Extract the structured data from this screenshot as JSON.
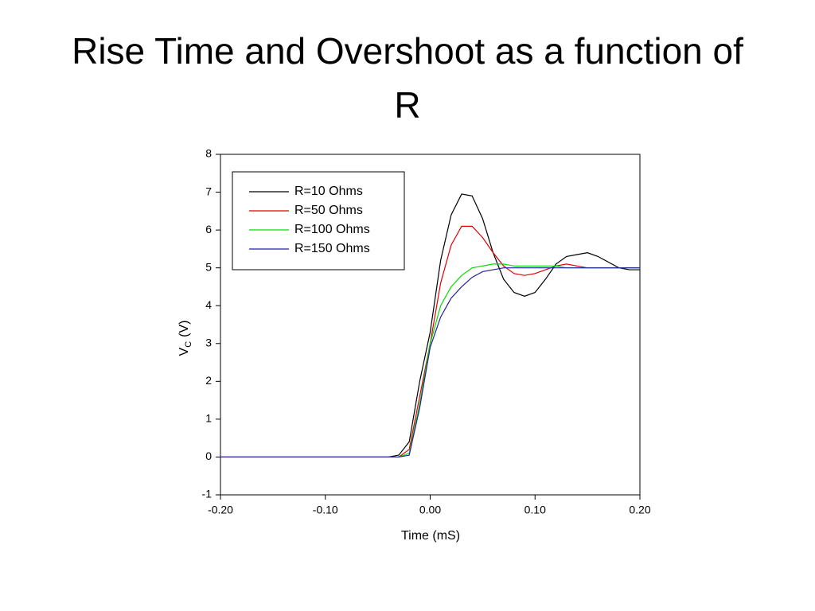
{
  "chart_data": {
    "type": "line",
    "title": "Rise Time and Overshoot as a function of R",
    "xlabel": "Time (mS)",
    "ylabel": "V",
    "ylabel_subscript": "C",
    "ylabel_unit": "(V)",
    "xlim": [
      -0.2,
      0.2
    ],
    "ylim": [
      -1,
      8
    ],
    "xticks": [
      {
        "value": -0.2,
        "label": "-0.20"
      },
      {
        "value": -0.1,
        "label": "-0.10"
      },
      {
        "value": 0,
        "label": "0.00"
      },
      {
        "value": 0.1,
        "label": "0.10"
      },
      {
        "value": 0.2,
        "label": "0.20"
      }
    ],
    "yticks": [
      -1,
      0,
      1,
      2,
      3,
      4,
      5,
      6,
      7,
      8
    ],
    "legend": "upper left",
    "x": [
      -0.2,
      -0.19,
      -0.18,
      -0.17,
      -0.16,
      -0.15,
      -0.14,
      -0.13,
      -0.12,
      -0.11,
      -0.1,
      -0.09,
      -0.08,
      -0.07,
      -0.06,
      -0.05,
      -0.04,
      -0.03,
      -0.02,
      -0.01,
      0,
      0.01,
      0.02,
      0.03,
      0.04,
      0.05,
      0.06,
      0.07,
      0.08,
      0.09,
      0.1,
      0.11,
      0.12,
      0.13,
      0.14,
      0.15,
      0.16,
      0.17,
      0.18,
      0.19,
      0.2
    ],
    "series": [
      {
        "name": "R=10 Ohms",
        "color": "#000000",
        "values": [
          0,
          0,
          0,
          0,
          0,
          0,
          0,
          0,
          0,
          0,
          0,
          0,
          0,
          0,
          0,
          0,
          0,
          0.05,
          0.4,
          2.0,
          3.3,
          5.2,
          6.4,
          6.95,
          6.9,
          6.3,
          5.4,
          4.7,
          4.35,
          4.25,
          4.35,
          4.7,
          5.1,
          5.3,
          5.35,
          5.4,
          5.3,
          5.15,
          5.0,
          4.95,
          4.95
        ]
      },
      {
        "name": "R=50 Ohms",
        "color": "#e00000",
        "values": [
          0,
          0,
          0,
          0,
          0,
          0,
          0,
          0,
          0,
          0,
          0,
          0,
          0,
          0,
          0,
          0,
          0,
          0,
          0.2,
          1.6,
          3.0,
          4.6,
          5.6,
          6.1,
          6.1,
          5.8,
          5.4,
          5.05,
          4.85,
          4.8,
          4.85,
          4.95,
          5.05,
          5.1,
          5.05,
          5.0,
          5.0,
          5.0,
          5.0,
          5.0,
          5.0
        ]
      },
      {
        "name": "R=100 Ohms",
        "color": "#00dd00",
        "values": [
          0,
          0,
          0,
          0,
          0,
          0,
          0,
          0,
          0,
          0,
          0,
          0,
          0,
          0,
          0,
          0,
          0,
          0,
          0.1,
          1.4,
          3.0,
          4.0,
          4.5,
          4.8,
          5.0,
          5.05,
          5.1,
          5.1,
          5.05,
          5.05,
          5.05,
          5.05,
          5.05,
          5.0,
          5.0,
          5.0,
          5.0,
          5.0,
          5.0,
          5.0,
          5.0
        ]
      },
      {
        "name": "R=150 Ohms",
        "color": "#2020a0",
        "values": [
          0,
          0,
          0,
          0,
          0,
          0,
          0,
          0,
          0,
          0,
          0,
          0,
          0,
          0,
          0,
          0,
          0,
          0,
          0.05,
          1.3,
          2.9,
          3.7,
          4.2,
          4.5,
          4.75,
          4.9,
          4.95,
          5.0,
          5.0,
          5.0,
          5.0,
          5.0,
          5.0,
          5.0,
          5.0,
          5.0,
          5.0,
          5.0,
          5.0,
          5.0,
          5.0
        ]
      }
    ]
  }
}
